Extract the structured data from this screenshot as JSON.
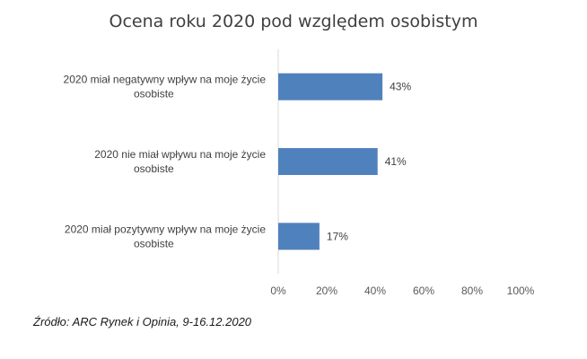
{
  "chart_data": {
    "type": "bar",
    "orientation": "horizontal",
    "title": "Ocena roku 2020 pod względem osobistym",
    "categories": [
      [
        "2020 miał negatywny wpływ na moje życie",
        "osobiste"
      ],
      [
        "2020 nie miał wpływu na moje życie",
        "osobiste"
      ],
      [
        "2020 miał pozytywny wpływ na moje życie",
        "osobiste"
      ]
    ],
    "values": [
      43,
      41,
      17
    ],
    "value_labels": [
      "43%",
      "41%",
      "17%"
    ],
    "xlim": [
      0,
      100
    ],
    "ticks": [
      0,
      20,
      40,
      60,
      80,
      100
    ],
    "tick_labels": [
      "0%",
      "20%",
      "40%",
      "60%",
      "80%",
      "100%"
    ],
    "bar_color": "#4f81bd",
    "grid": false,
    "legend": "none"
  },
  "source": "Źródło: ARC Rynek i Opinia, 9-16.12.2020"
}
